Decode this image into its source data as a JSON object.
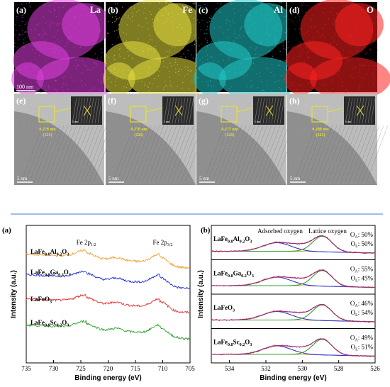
{
  "top_figure": {
    "eds_panels": [
      {
        "label": "(a)",
        "element": "La",
        "color": "#e040e0"
      },
      {
        "label": "(b)",
        "element": "Fe",
        "color": "#e6e040"
      },
      {
        "label": "(c)",
        "element": "Al",
        "color": "#20c8c8"
      },
      {
        "label": "(d)",
        "element": "O",
        "color": "#ff2020"
      }
    ],
    "eds_scale_bar": "100 nm",
    "hrtem_panels": [
      {
        "label": "(e)",
        "d_spacing": "0.278 nm",
        "plane": "(121)",
        "inset_scale": "1 nm",
        "scale_bar": "5 nm"
      },
      {
        "label": "(f)",
        "d_spacing": "0.278 nm",
        "plane": "(121)",
        "inset_scale": "1 nm",
        "scale_bar": "5 nm"
      },
      {
        "label": "(g)",
        "d_spacing": "0.277 nm",
        "plane": "(121)",
        "inset_scale": "1 nm",
        "scale_bar": "5 nm"
      },
      {
        "label": "(h)",
        "d_spacing": "0.288 nm",
        "plane": "(121)",
        "inset_scale": "1 nm",
        "scale_bar": "5 nm"
      }
    ]
  },
  "chart_data": [
    {
      "type": "line",
      "panel_label": "(a)",
      "xlabel": "Binding energy (eV)",
      "ylabel": "Intensity (a.u.)",
      "xlim": [
        735,
        705
      ],
      "xticks": [
        735,
        730,
        725,
        720,
        715,
        710,
        705
      ],
      "peak_labels": [
        {
          "text": "Fe 2p",
          "sub": "1/2",
          "x": 724
        },
        {
          "text": "Fe 2p",
          "sub": "3/2",
          "x": 710
        }
      ],
      "series": [
        {
          "color": "#f0a030",
          "sample": {
            "parts": [
              [
                "LaFe",
                ""
              ],
              [
                "0.8",
                "sub"
              ],
              [
                "Al",
                ""
              ],
              [
                "0.2",
                "sub"
              ],
              [
                "O",
                ""
              ],
              [
                "3",
                "sub"
              ]
            ]
          }
        },
        {
          "color": "#2030d0",
          "sample": {
            "parts": [
              [
                "LaFe",
                ""
              ],
              [
                "0.8",
                "sub"
              ],
              [
                "Ga",
                ""
              ],
              [
                "0.2",
                "sub"
              ],
              [
                "O",
                ""
              ],
              [
                "3",
                "sub"
              ]
            ]
          }
        },
        {
          "color": "#e03030",
          "sample": {
            "parts": [
              [
                "LaFeO",
                ""
              ],
              [
                "3",
                "sub"
              ]
            ]
          }
        },
        {
          "color": "#30a030",
          "sample": {
            "parts": [
              [
                "LaFe",
                ""
              ],
              [
                "0.8",
                "sub"
              ],
              [
                "Sc",
                ""
              ],
              [
                "0.2",
                "sub"
              ],
              [
                "O",
                ""
              ],
              [
                "3",
                "sub"
              ]
            ]
          }
        }
      ]
    },
    {
      "type": "line",
      "panel_label": "(b)",
      "xlabel": "Binding energy (eV)",
      "ylabel": "Intensity (a.u.)",
      "xlim": [
        535,
        526
      ],
      "xticks": [
        534,
        532,
        530,
        528,
        526
      ],
      "annotations": [
        "Adsorbed oxygen",
        "Lattice oxygen"
      ],
      "series": [
        {
          "sample": {
            "parts": [
              [
                "LaFe",
                ""
              ],
              [
                "0.8",
                "sub"
              ],
              [
                "Al",
                ""
              ],
              [
                "0.2",
                "sub"
              ],
              [
                "O",
                ""
              ],
              [
                "3",
                "sub"
              ]
            ]
          },
          "OA": "50%",
          "OL": "50%"
        },
        {
          "sample": {
            "parts": [
              [
                "LaFe",
                ""
              ],
              [
                "0.8",
                "sub"
              ],
              [
                "Ga",
                ""
              ],
              [
                "0.2",
                "sub"
              ],
              [
                "O",
                ""
              ],
              [
                "3",
                "sub"
              ]
            ]
          },
          "OA": "55%",
          "OL": "45%"
        },
        {
          "sample": {
            "parts": [
              [
                "LaFeO",
                ""
              ],
              [
                "3",
                "sub"
              ]
            ]
          },
          "OA": "46%",
          "OL": "54%"
        },
        {
          "sample": {
            "parts": [
              [
                "LaFe",
                ""
              ],
              [
                "0.8",
                "sub"
              ],
              [
                "Sc",
                ""
              ],
              [
                "0.2",
                "sub"
              ],
              [
                "O",
                ""
              ],
              [
                "3",
                "sub"
              ]
            ]
          },
          "OA": "49%",
          "OL": "51%"
        }
      ],
      "fit_colors": {
        "raw": "#e03030",
        "envelope": "#8b3080",
        "adsorbed": "#3030d0",
        "lattice": "#30a030",
        "background": "#e0a040"
      }
    }
  ]
}
